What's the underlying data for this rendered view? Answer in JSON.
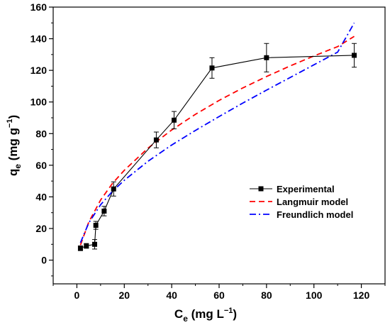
{
  "chart_data": {
    "type": "line",
    "xlabel": {
      "main": "C",
      "sub": "e",
      "unit_pre": " (mg L",
      "unit_sup": "−1",
      "unit_post": ")"
    },
    "ylabel": {
      "main": "q",
      "sub": "e",
      "unit_pre": " (mg g",
      "unit_sup": "−1",
      "unit_post": ")"
    },
    "xlim": [
      -10,
      130
    ],
    "ylim": [
      -15,
      160
    ],
    "xticks": [
      0,
      20,
      40,
      60,
      80,
      100,
      120
    ],
    "yticks": [
      0,
      20,
      40,
      60,
      80,
      100,
      120,
      140,
      160
    ],
    "legend_position": "center-right",
    "series": [
      {
        "name": "Experimental",
        "style": "solid-square-markers",
        "color": "#000000",
        "x": [
          1.5,
          4.0,
          7.5,
          8.0,
          11.5,
          15.5,
          33.5,
          41.0,
          57.0,
          80.0,
          117.0
        ],
        "y": [
          7.5,
          9.0,
          10.0,
          22.0,
          31.0,
          45.0,
          76.0,
          88.5,
          121.5,
          128.0,
          129.5
        ],
        "err": [
          1.5,
          1.5,
          3.0,
          2.5,
          3.0,
          4.5,
          5.0,
          5.5,
          6.5,
          9.0,
          7.5
        ]
      },
      {
        "name": "Langmuir model",
        "style": "dashed",
        "color": "#ff0000",
        "x": [
          1.5,
          5,
          10,
          15,
          20,
          30,
          40,
          50,
          60,
          70,
          80,
          90,
          100,
          110,
          117
        ],
        "y": [
          9.5,
          24.0,
          38.0,
          48.5,
          56.8,
          70.8,
          82.3,
          92.2,
          101.0,
          108.9,
          116.1,
          122.8,
          129.1,
          135.0,
          141.5
        ]
      },
      {
        "name": "Freundlich model",
        "style": "dash-dot",
        "color": "#0000ff",
        "x": [
          1.5,
          5,
          10,
          15,
          20,
          30,
          40,
          50,
          60,
          70,
          80,
          90,
          100,
          110,
          117
        ],
        "y": [
          11.0,
          23.5,
          35.0,
          43.5,
          50.5,
          62.5,
          72.8,
          82.0,
          90.8,
          99.3,
          107.5,
          115.5,
          123.5,
          131.5,
          150.0
        ]
      }
    ]
  }
}
